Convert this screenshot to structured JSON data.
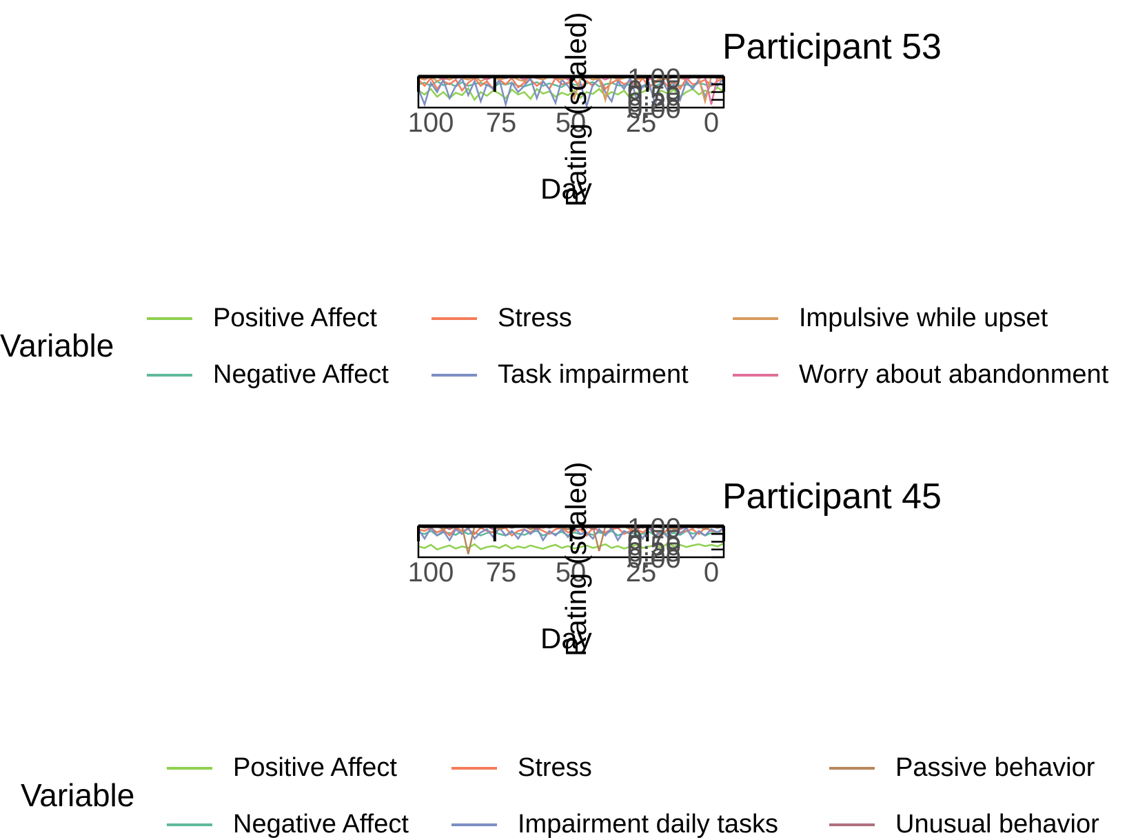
{
  "chart_data": [
    {
      "type": "line",
      "title": "Participant 53",
      "xlabel": "Day",
      "ylabel": "Rating (scaled)",
      "x_ticks": [
        "100",
        "75",
        "50",
        "25",
        "0"
      ],
      "x_range": [
        100,
        0
      ],
      "y_ticks": [
        "0.00",
        "0.25",
        "0.50",
        "0.75",
        "1.00"
      ],
      "ylim": [
        0,
        1
      ],
      "legend_title": "Variable",
      "legend_position": "bottom",
      "series": [
        {
          "name": "Positive Affect",
          "color": "#8fd14f",
          "values": [
            0.55,
            0.42,
            0.6,
            0.35,
            0.5,
            0.3,
            0.48,
            0.4,
            0.62,
            0.25,
            0.5,
            0.38,
            0.55,
            0.45,
            0.3,
            0.58,
            0.42,
            0.5,
            0.28,
            0.6,
            0.45,
            0.52,
            0.35,
            0.48,
            0.4,
            0.55,
            0.32,
            0.5,
            0.44,
            0.6,
            0.38,
            0.5,
            0.42,
            0.55,
            0.3,
            0.48,
            0.5,
            0.62,
            0.4,
            0.55,
            0.45,
            0.58,
            0.35,
            0.5,
            0.6,
            0.42,
            0.55,
            0.48,
            0.65,
            0.5
          ]
        },
        {
          "name": "Negative Affect",
          "color": "#5fb99a",
          "values": [
            0.75,
            0.8,
            0.7,
            0.85,
            0.72,
            0.78,
            0.68,
            0.82,
            0.7,
            0.76,
            0.8,
            0.72,
            0.65,
            0.78,
            0.74,
            0.8,
            0.7,
            0.68,
            0.75,
            0.82,
            0.7,
            0.78,
            0.72,
            0.66,
            0.8,
            0.74,
            0.7,
            0.78,
            0.82,
            0.68,
            0.75,
            0.8,
            0.72,
            0.7,
            0.76,
            0.8,
            0.66,
            0.74,
            0.7,
            0.78,
            0.72,
            0.8,
            0.7,
            0.75,
            0.68,
            0.8,
            0.74,
            0.7,
            0.78,
            0.72
          ]
        },
        {
          "name": "Stress",
          "color": "#f47c5a",
          "values": [
            0.9,
            0.7,
            0.95,
            0.6,
            0.85,
            0.75,
            0.9,
            0.55,
            0.8,
            0.95,
            0.7,
            0.85,
            0.6,
            0.9,
            0.75,
            0.95,
            0.65,
            0.8,
            0.9,
            0.7,
            0.85,
            0.6,
            0.95,
            0.75,
            0.8,
            0.9,
            0.65,
            0.85,
            0.7,
            0.95,
            0.6,
            0.8,
            0.9,
            0.75,
            0.85,
            0.7,
            0.95,
            0.65,
            0.8,
            0.9,
            0.7,
            0.85,
            0.6,
            0.95,
            0.75,
            0.8,
            0.9,
            0.7,
            0.85,
            0.95
          ]
        },
        {
          "name": "Task impairment",
          "color": "#7c8fc4",
          "values": [
            0.6,
            0.1,
            0.8,
            0.5,
            0.9,
            0.3,
            0.7,
            0.95,
            0.4,
            0.85,
            0.2,
            0.75,
            0.6,
            0.9,
            0.1,
            0.8,
            0.5,
            0.7,
            0.95,
            0.3,
            0.85,
            0.6,
            0.15,
            0.9,
            0.7,
            0.4,
            0.8,
            0.05,
            0.75,
            0.9,
            0.5,
            0.2,
            0.85,
            0.6,
            0.95,
            0.3,
            0.7,
            0.8,
            0.1,
            0.9,
            0.55,
            0.75,
            0.25,
            0.85,
            0.6,
            0.9,
            0.35,
            0.8,
            0.7,
            0.95
          ]
        },
        {
          "name": "Impulsive while upset",
          "color": "#d99a5c",
          "values": [
            0.95,
            0.9,
            1.0,
            0.85,
            0.95,
            0.9,
            1.0,
            0.95,
            0.9,
            1.0,
            0.85,
            0.95,
            1.0,
            0.9,
            0.95,
            1.0,
            0.9,
            0.85,
            1.0,
            0.95,
            0.9,
            1.0,
            0.95,
            0.9,
            1.0,
            0.3,
            0.95,
            1.0,
            0.9,
            0.95,
            0.25,
            1.0,
            0.9,
            0.95,
            1.0,
            0.9,
            0.95,
            1.0,
            0.85,
            0.95,
            0.9,
            1.0,
            0.95,
            0.9,
            1.0,
            0.95,
            0.2,
            1.0,
            0.95,
            0.9
          ]
        },
        {
          "name": "Worry about abandonment",
          "color": "#e0709a",
          "values": [
            1.0,
            0.95,
            1.0,
            1.0,
            0.9,
            1.0,
            0.95,
            1.0,
            1.0,
            0.95,
            1.0,
            0.9,
            1.0,
            1.0,
            0.95,
            1.0,
            1.0,
            0.9,
            1.0,
            0.95,
            1.0,
            1.0,
            0.95,
            1.0,
            0.9,
            1.0,
            1.0,
            0.95,
            1.0,
            1.0,
            0.9,
            1.0,
            0.95,
            1.0,
            1.0,
            0.95,
            1.0,
            0.9,
            1.0,
            1.0,
            0.95,
            1.0,
            1.0,
            0.9,
            1.0,
            0.95,
            1.0,
            0.1,
            1.0,
            0.95
          ]
        }
      ]
    },
    {
      "type": "line",
      "title": "Participant 45",
      "xlabel": "Day",
      "ylabel": "Rating (scaled)",
      "x_ticks": [
        "100",
        "75",
        "50",
        "25",
        "0"
      ],
      "x_range": [
        100,
        0
      ],
      "y_ticks": [
        "0.00",
        "0.25",
        "0.50",
        "0.75",
        "1.00"
      ],
      "ylim": [
        0,
        1
      ],
      "legend_title": "Variable",
      "legend_position": "bottom",
      "series": [
        {
          "name": "Positive Affect",
          "color": "#8fd14f",
          "values": [
            0.35,
            0.3,
            0.4,
            0.25,
            0.32,
            0.38,
            0.28,
            0.35,
            0.3,
            0.42,
            0.26,
            0.33,
            0.36,
            0.3,
            0.4,
            0.28,
            0.35,
            0.3,
            0.38,
            0.32,
            0.27,
            0.35,
            0.4,
            0.3,
            0.36,
            0.28,
            0.33,
            0.38,
            0.3,
            0.35,
            0.42,
            0.3,
            0.36,
            0.28,
            0.34,
            0.4,
            0.3,
            0.35,
            0.38,
            0.3,
            0.45,
            0.35,
            0.4,
            0.33,
            0.38,
            0.42,
            0.36,
            0.4,
            0.35,
            0.45
          ]
        },
        {
          "name": "Negative Affect",
          "color": "#5fb99a",
          "values": [
            0.8,
            0.75,
            0.85,
            0.7,
            0.8,
            0.78,
            0.72,
            0.85,
            0.75,
            0.8,
            0.7,
            0.78,
            0.82,
            0.75,
            0.7,
            0.8,
            0.76,
            0.72,
            0.8,
            0.85,
            0.7,
            0.78,
            0.75,
            0.82,
            0.7,
            0.8,
            0.74,
            0.78,
            0.72,
            0.8,
            0.75,
            0.85,
            0.7,
            0.78,
            0.8,
            0.72,
            0.76,
            0.82,
            0.7,
            0.8,
            0.75,
            0.78,
            0.72,
            0.85,
            0.76,
            0.8,
            0.7,
            0.78,
            0.82,
            0.75
          ]
        },
        {
          "name": "Stress",
          "color": "#f47c5a",
          "values": [
            0.9,
            0.85,
            0.95,
            0.8,
            0.9,
            0.7,
            0.95,
            0.85,
            0.9,
            0.75,
            0.95,
            0.85,
            0.8,
            0.9,
            0.95,
            0.7,
            0.85,
            0.9,
            0.8,
            0.95,
            0.85,
            0.75,
            0.9,
            0.95,
            0.8,
            0.85,
            0.9,
            0.7,
            0.95,
            0.85,
            0.8,
            0.9,
            0.95,
            0.75,
            0.85,
            0.9,
            0.8,
            0.95,
            0.85,
            0.7,
            0.9,
            0.95,
            0.8,
            0.85,
            0.9,
            0.75,
            0.95,
            0.85,
            0.8,
            0.9
          ]
        },
        {
          "name": "Impairment daily tasks",
          "color": "#7c8fc4",
          "values": [
            0.9,
            0.6,
            0.95,
            0.7,
            0.85,
            0.55,
            0.9,
            0.75,
            0.95,
            0.6,
            0.8,
            0.9,
            0.65,
            0.95,
            0.7,
            0.85,
            0.6,
            0.9,
            0.75,
            0.95,
            0.55,
            0.85,
            0.7,
            0.9,
            0.65,
            0.95,
            0.75,
            0.8,
            0.6,
            0.9,
            0.7,
            0.95,
            0.55,
            0.85,
            0.75,
            0.9,
            0.6,
            0.95,
            0.7,
            0.85,
            0.65,
            0.9,
            0.75,
            0.95,
            0.6,
            0.85,
            0.7,
            0.9,
            0.8,
            0.95
          ]
        },
        {
          "name": "Passive behavior",
          "color": "#b8875a",
          "values": [
            1.0,
            0.95,
            1.0,
            1.0,
            0.9,
            1.0,
            0.95,
            1.0,
            0.1,
            1.0,
            0.95,
            1.0,
            1.0,
            0.9,
            1.0,
            0.95,
            1.0,
            1.0,
            0.9,
            1.0,
            0.95,
            1.0,
            1.0,
            0.95,
            0.9,
            1.0,
            1.0,
            0.95,
            1.0,
            0.2,
            1.0,
            0.95,
            1.0,
            1.0,
            0.9,
            1.0,
            0.95,
            1.0,
            1.0,
            0.95,
            1.0,
            0.9,
            1.0,
            1.0,
            0.95,
            1.0,
            0.9,
            1.0,
            0.95,
            1.0
          ]
        },
        {
          "name": "Unusual behavior",
          "color": "#b07080",
          "values": [
            1.0,
            1.0,
            0.95,
            1.0,
            1.0,
            0.9,
            1.0,
            1.0,
            0.95,
            1.0,
            1.0,
            1.0,
            0.9,
            1.0,
            1.0,
            0.95,
            1.0,
            1.0,
            1.0,
            0.9,
            1.0,
            0.95,
            1.0,
            1.0,
            1.0,
            0.95,
            1.0,
            1.0,
            0.9,
            1.0,
            1.0,
            1.0,
            0.95,
            1.0,
            1.0,
            0.9,
            1.0,
            1.0,
            1.0,
            0.95,
            1.0,
            1.0,
            0.9,
            1.0,
            1.0,
            0.95,
            1.0,
            1.0,
            1.0,
            0.95
          ]
        }
      ]
    }
  ]
}
